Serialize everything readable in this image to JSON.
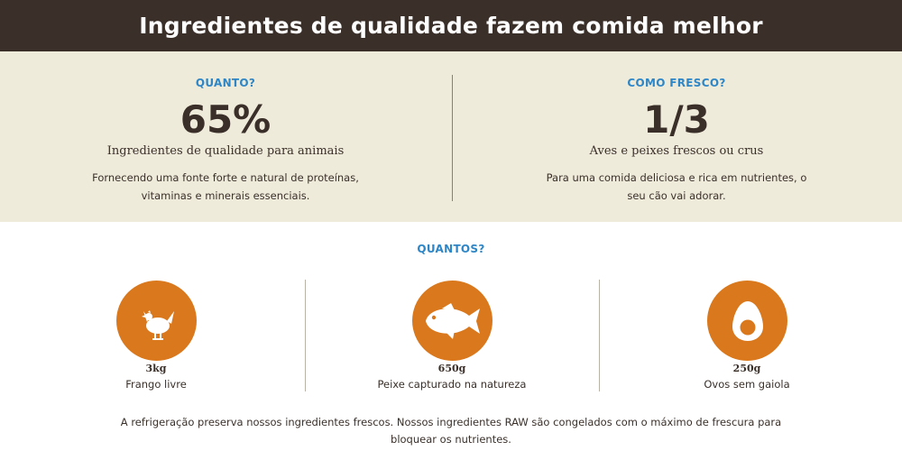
{
  "banner": {
    "title": "Ingredientes de qualidade fazem comida melhor"
  },
  "stats": [
    {
      "heading": "QUANTO?",
      "value": "65%",
      "label": "Ingredientes de qualidade para animais",
      "description": "Fornecendo uma fonte forte e natural de proteínas, vitaminas e minerais essenciais."
    },
    {
      "heading": "COMO FRESCO?",
      "value": "1/3",
      "label": "Aves e peixes frescos ou crus",
      "description": "Para uma comida deliciosa e rica em nutrientes, o seu cão vai adorar."
    }
  ],
  "quantos": {
    "heading": "QUANTOS?",
    "items": [
      {
        "icon": "chicken-icon",
        "amount": "3kg",
        "label": "Frango livre"
      },
      {
        "icon": "fish-icon",
        "amount": "650g",
        "label": "Peixe capturado na natureza"
      },
      {
        "icon": "egg-icon",
        "amount": "250g",
        "label": "Ovos sem gaiola"
      }
    ]
  },
  "footer": {
    "note": "A refrigeração preserva nossos ingredientes frescos. Nossos ingredientes RAW são congelados com o máximo de frescura para bloquear os nutrientes."
  },
  "colors": {
    "banner_bg": "#3a2f29",
    "stats_bg": "#efebda",
    "heading_blue": "#2e86c6",
    "icon_orange": "#d9781c"
  }
}
